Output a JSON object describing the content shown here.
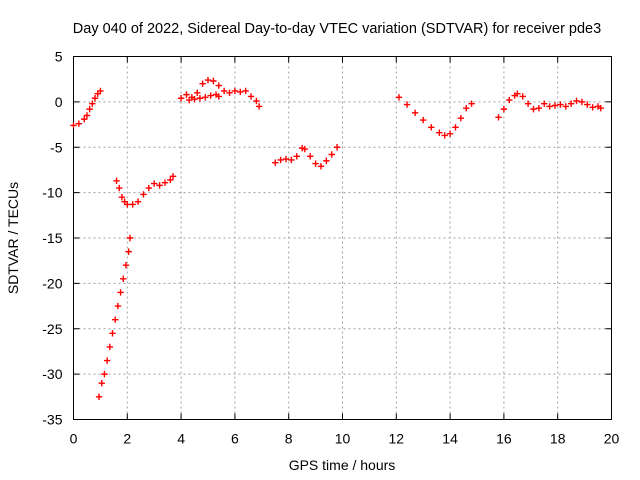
{
  "chart_data": {
    "type": "scatter",
    "title": "Day 040 of 2022, Sidereal Day-to-day VTEC variation (SDTVAR) for receiver pde3",
    "xlabel": "GPS time / hours",
    "ylabel": "SDTVAR / TECUs",
    "xlim": [
      0,
      20
    ],
    "ylim": [
      -35,
      5
    ],
    "xticks": [
      0,
      2,
      4,
      6,
      8,
      10,
      12,
      14,
      16,
      18,
      20
    ],
    "yticks": [
      5,
      0,
      -5,
      -10,
      -15,
      -20,
      -25,
      -30,
      -35
    ],
    "grid": true,
    "legend": "none",
    "marker": "plus",
    "color": "#ff0000",
    "series": [
      {
        "x": [
          0.0,
          0.2,
          0.4,
          0.5,
          0.6,
          0.7,
          0.8,
          0.9,
          1.0
        ],
        "y": [
          -2.6,
          -2.4,
          -1.9,
          -1.5,
          -0.8,
          -0.2,
          0.4,
          0.9,
          1.2
        ]
      },
      {
        "x": [
          0.95,
          1.05,
          1.15,
          1.25,
          1.35,
          1.45,
          1.55,
          1.65,
          1.75,
          1.85,
          1.95,
          2.05,
          2.1
        ],
        "y": [
          -32.5,
          -31.0,
          -30.0,
          -28.5,
          -27.0,
          -25.5,
          -24.0,
          -22.5,
          -21.0,
          -19.5,
          -18.0,
          -16.5,
          -15.0
        ]
      },
      {
        "x": [
          1.6,
          1.7,
          1.8,
          1.9,
          2.0,
          2.2,
          2.4,
          2.6,
          2.8,
          3.0,
          3.2,
          3.4,
          3.6,
          3.7
        ],
        "y": [
          -8.7,
          -9.5,
          -10.5,
          -11.0,
          -11.3,
          -11.3,
          -11.0,
          -10.2,
          -9.5,
          -9.0,
          -9.2,
          -8.9,
          -8.6,
          -8.2
        ]
      },
      {
        "x": [
          4.0,
          4.2,
          4.4,
          4.6,
          4.8,
          5.0,
          5.2,
          5.4,
          5.6,
          5.8,
          6.0,
          6.2,
          6.4,
          6.6,
          6.8,
          6.9
        ],
        "y": [
          0.4,
          0.8,
          0.5,
          1.0,
          2.0,
          2.4,
          2.3,
          1.8,
          1.2,
          1.0,
          1.2,
          1.1,
          1.2,
          0.6,
          0.1,
          -0.5
        ]
      },
      {
        "x": [
          4.3,
          4.5,
          4.7,
          4.9,
          5.1,
          5.3,
          5.4
        ],
        "y": [
          0.2,
          0.3,
          0.4,
          0.5,
          0.7,
          0.8,
          0.6
        ]
      },
      {
        "x": [
          7.5,
          7.7,
          7.9,
          8.1,
          8.3,
          8.5,
          8.6,
          8.8,
          9.0,
          9.2,
          9.4,
          9.6,
          9.8
        ],
        "y": [
          -6.7,
          -6.4,
          -6.3,
          -6.4,
          -6.0,
          -5.1,
          -5.2,
          -6.0,
          -6.8,
          -7.1,
          -6.5,
          -5.8,
          -5.0
        ]
      },
      {
        "x": [
          12.1,
          12.4,
          12.7,
          13.0,
          13.3,
          13.6,
          13.8,
          14.0,
          14.2,
          14.4,
          14.6,
          14.8
        ],
        "y": [
          0.5,
          -0.3,
          -1.2,
          -2.0,
          -2.8,
          -3.4,
          -3.7,
          -3.5,
          -2.8,
          -1.8,
          -0.7,
          -0.2
        ]
      },
      {
        "x": [
          15.8,
          16.0,
          16.2,
          16.4,
          16.5,
          16.7,
          16.9,
          17.1,
          17.3,
          17.5,
          17.7,
          17.9,
          18.1,
          18.3,
          18.5,
          18.7,
          18.9,
          19.1,
          19.3,
          19.5,
          19.6
        ],
        "y": [
          -1.7,
          -0.8,
          0.2,
          0.7,
          0.9,
          0.6,
          -0.2,
          -0.8,
          -0.7,
          -0.2,
          -0.5,
          -0.4,
          -0.3,
          -0.5,
          -0.2,
          0.1,
          0.0,
          -0.3,
          -0.6,
          -0.5,
          -0.7
        ]
      }
    ]
  }
}
